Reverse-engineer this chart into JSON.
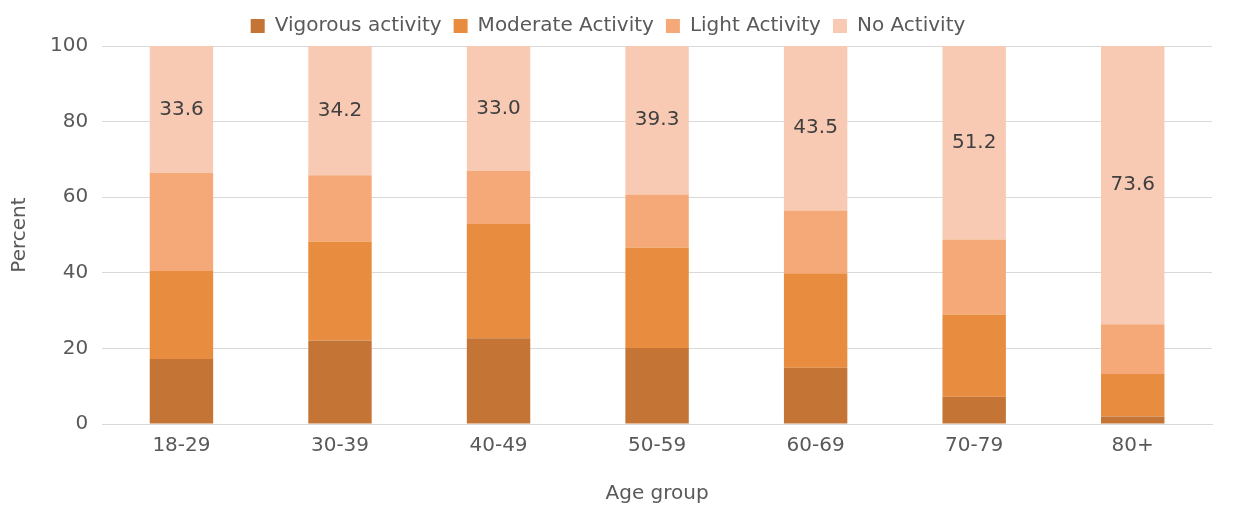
{
  "chart_data": {
    "type": "bar",
    "stacked": true,
    "xlabel": "Age group",
    "ylabel": "Percent",
    "categories": [
      "18-29",
      "30-39",
      "40-49",
      "50-59",
      "60-69",
      "70-79",
      "80+"
    ],
    "series": [
      {
        "name": "Vigorous activity",
        "color": "#c47434",
        "values": [
          17.2,
          22.1,
          22.7,
          20.1,
          14.9,
          7.2,
          2.0
        ]
      },
      {
        "name": "Moderate Activity",
        "color": "#e88d3f",
        "values": [
          23.3,
          26.2,
          30.2,
          26.5,
          25.0,
          21.8,
          11.2
        ]
      },
      {
        "name": "Light Activity",
        "color": "#f5a978",
        "values": [
          25.9,
          17.5,
          14.1,
          14.1,
          16.6,
          19.8,
          13.2
        ]
      },
      {
        "name": "No Activity",
        "color": "#f8cab4",
        "values": [
          33.6,
          34.2,
          33.0,
          39.3,
          43.5,
          51.2,
          73.6
        ],
        "value_labels": [
          "33.6",
          "34.2",
          "33.0",
          "39.3",
          "43.5",
          "51.2",
          "73.6"
        ]
      }
    ],
    "ylim": [
      0,
      100
    ],
    "yticks": [
      0,
      20,
      40,
      60,
      80,
      100
    ],
    "grid": "y",
    "legend": "top"
  }
}
